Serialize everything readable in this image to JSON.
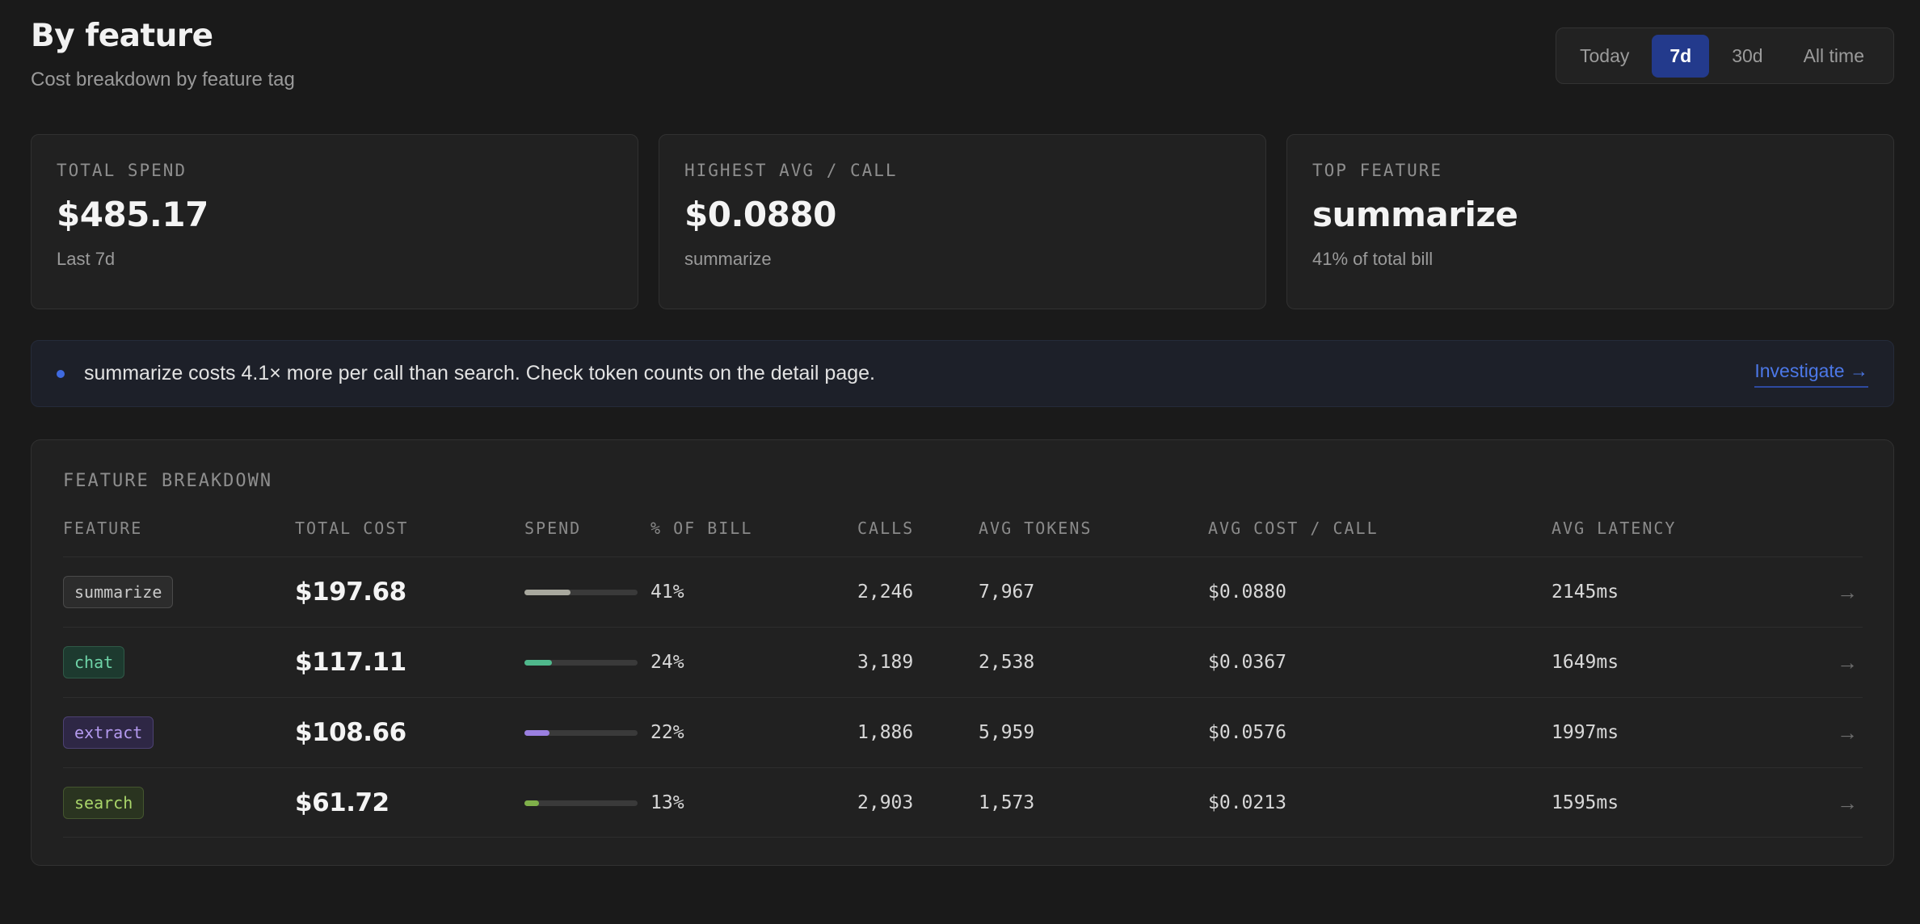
{
  "header": {
    "title": "By feature",
    "subtitle": "Cost breakdown by feature tag"
  },
  "range": {
    "options": [
      "Today",
      "7d",
      "30d",
      "All time"
    ],
    "selected": "7d"
  },
  "cards": [
    {
      "label": "TOTAL SPEND",
      "value": "$485.17",
      "sub": "Last 7d"
    },
    {
      "label": "HIGHEST AVG / CALL",
      "value": "$0.0880",
      "sub": "summarize"
    },
    {
      "label": "TOP FEATURE",
      "value": "summarize",
      "sub": "41% of total bill"
    }
  ],
  "insight": {
    "message": "summarize costs 4.1× more per call than search. Check token counts on the detail page.",
    "link": "Investigate →"
  },
  "table": {
    "title": "FEATURE BREAKDOWN",
    "columns": [
      "FEATURE",
      "TOTAL COST",
      "SPEND",
      "% OF BILL",
      "CALLS",
      "AVG TOKENS",
      "AVG COST / CALL",
      "AVG LATENCY"
    ],
    "rows": [
      {
        "feature": "summarize",
        "total_cost": "$197.68",
        "spend_fraction": 0.41,
        "pct": "41%",
        "calls": "2,246",
        "avg_tokens": "7,967",
        "avg_cost": "$0.0880",
        "latency": "2145ms",
        "arrow": "→",
        "tag_color": "#c9c9c9",
        "tag_bg": "#2c2c2c",
        "tag_border": "#4a4a4a",
        "bar_color": "#a8a89e"
      },
      {
        "feature": "chat",
        "total_cost": "$117.11",
        "spend_fraction": 0.24,
        "pct": "24%",
        "calls": "3,189",
        "avg_tokens": "2,538",
        "avg_cost": "$0.0367",
        "latency": "1649ms",
        "arrow": "→",
        "tag_color": "#6fd4a8",
        "tag_bg": "#1d3a2f",
        "tag_border": "#2f5a47",
        "bar_color": "#4fb88c"
      },
      {
        "feature": "extract",
        "total_cost": "$108.66",
        "spend_fraction": 0.22,
        "pct": "22%",
        "calls": "1,886",
        "avg_tokens": "5,959",
        "avg_cost": "$0.0576",
        "latency": "1997ms",
        "arrow": "→",
        "tag_color": "#b59bf0",
        "tag_bg": "#2e2745",
        "tag_border": "#4d4272",
        "bar_color": "#9a7fe0"
      },
      {
        "feature": "search",
        "total_cost": "$61.72",
        "spend_fraction": 0.13,
        "pct": "13%",
        "calls": "2,903",
        "avg_tokens": "1,573",
        "avg_cost": "$0.0213",
        "latency": "1595ms",
        "arrow": "→",
        "tag_color": "#a9d56a",
        "tag_bg": "#2a3420",
        "tag_border": "#45562f",
        "bar_color": "#7fb04a"
      }
    ]
  }
}
